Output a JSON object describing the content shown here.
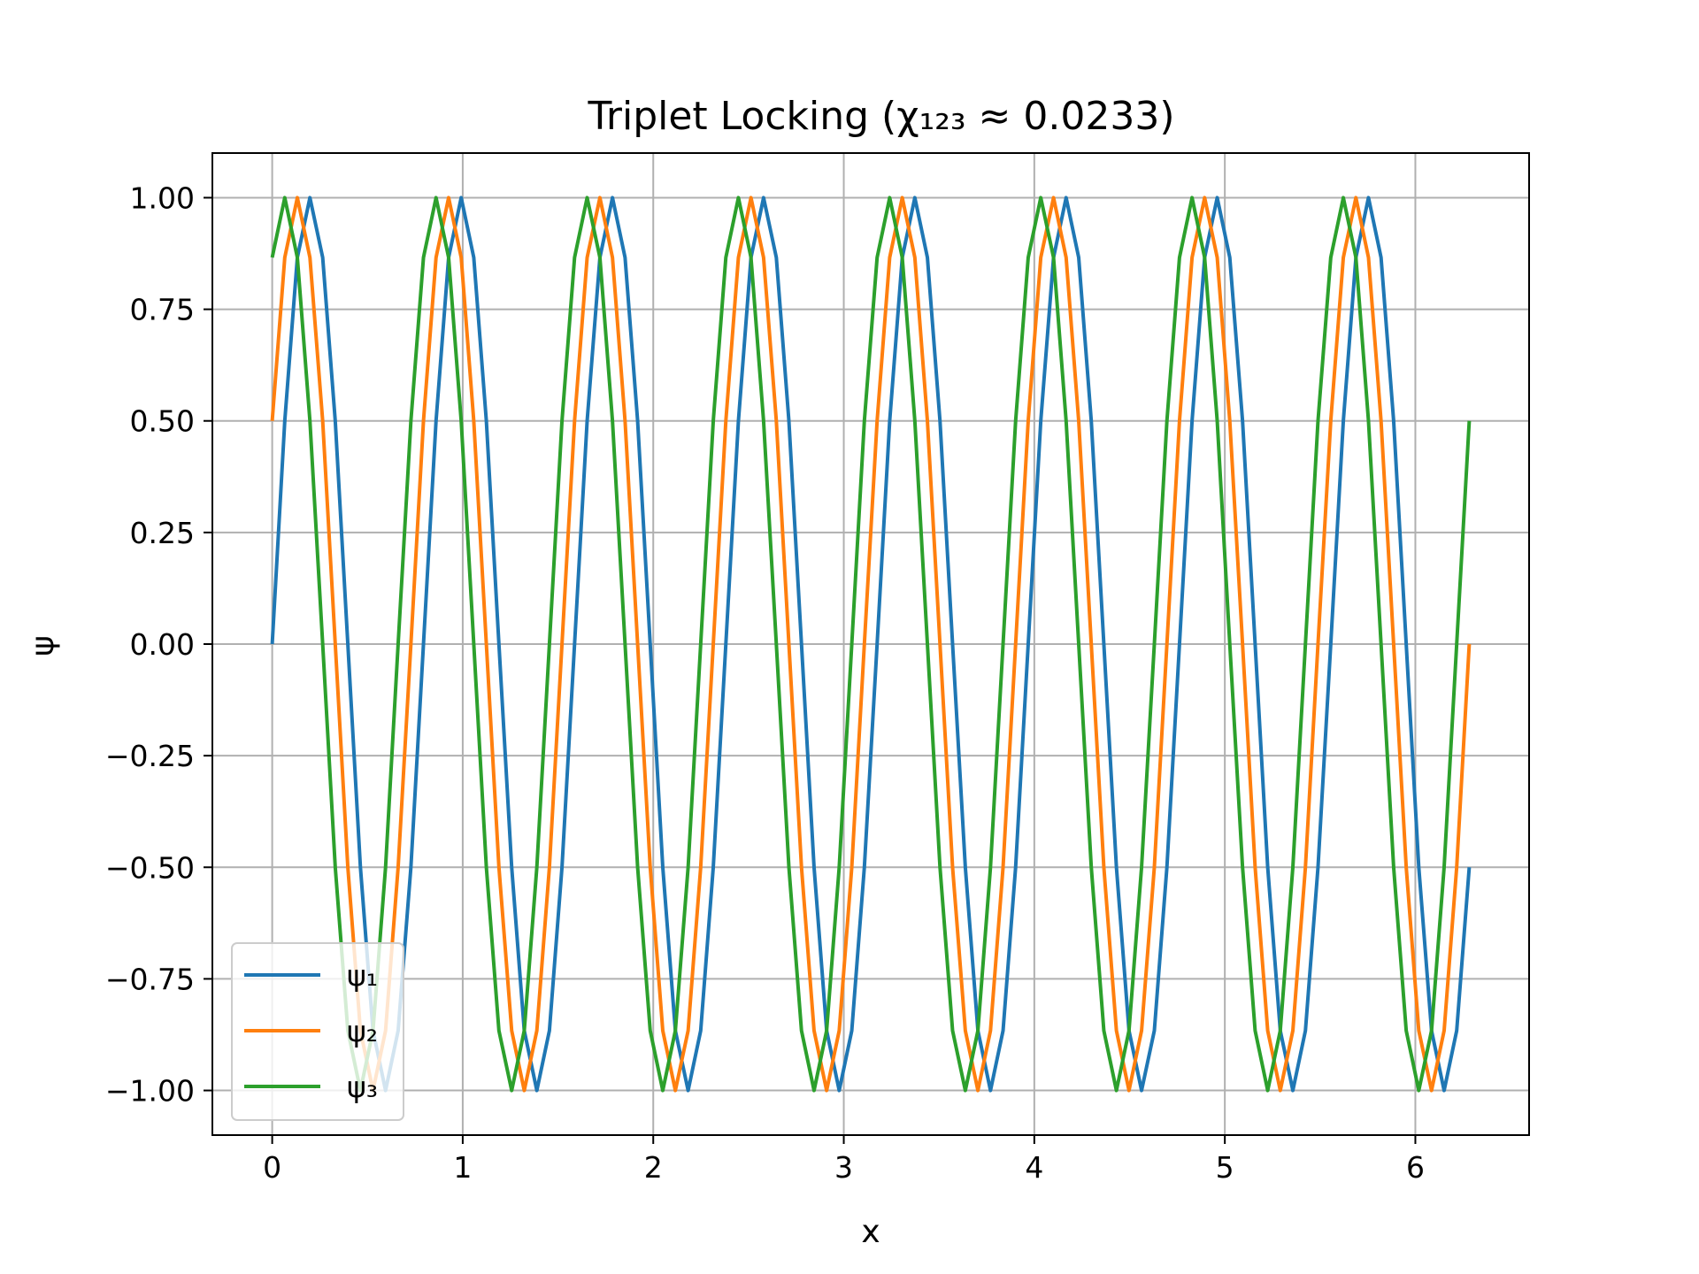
{
  "chart_data": {
    "type": "line",
    "title": "Triplet Locking (χ₁₂₃ ≈ 0.0233)",
    "xlabel": "x",
    "ylabel": "ψ",
    "xlim": [
      -0.314,
      6.597
    ],
    "ylim": [
      -1.1,
      1.1
    ],
    "grid": true,
    "legend_position": "lower-left",
    "x_ticks": [
      0,
      1,
      2,
      3,
      4,
      5,
      6
    ],
    "x_tick_labels": [
      "0",
      "1",
      "2",
      "3",
      "4",
      "5",
      "6"
    ],
    "y_ticks": [
      1.0,
      0.75,
      0.5,
      0.25,
      0.0,
      -0.25,
      -0.5,
      -0.75,
      -1.0
    ],
    "y_tick_labels": [
      "1.00",
      "0.75",
      "0.50",
      "0.25",
      "0.00",
      "−0.25",
      "−0.50",
      "−0.75",
      "−1.00"
    ],
    "x": [
      0.0,
      0.066,
      0.132,
      0.198,
      0.265,
      0.331,
      0.397,
      0.463,
      0.529,
      0.595,
      0.661,
      0.728,
      0.794,
      0.86,
      0.926,
      0.992,
      1.058,
      1.124,
      1.19,
      1.257,
      1.323,
      1.389,
      1.455,
      1.521,
      1.587,
      1.653,
      1.72,
      1.786,
      1.852,
      1.918,
      1.984,
      2.05,
      2.116,
      2.183,
      2.249,
      2.315,
      2.381,
      2.447,
      2.513,
      2.579,
      2.646,
      2.712,
      2.778,
      2.844,
      2.91,
      2.976,
      3.042,
      3.108,
      3.175,
      3.241,
      3.307,
      3.373,
      3.439,
      3.505,
      3.571,
      3.638,
      3.704,
      3.77,
      3.836,
      3.902,
      3.968,
      4.034,
      4.101,
      4.167,
      4.233,
      4.299,
      4.365,
      4.431,
      4.497,
      4.563,
      4.63,
      4.696,
      4.762,
      4.828,
      4.894,
      4.96,
      5.026,
      5.093,
      5.159,
      5.225,
      5.291,
      5.357,
      5.423,
      5.489,
      5.556,
      5.622,
      5.688,
      5.754,
      5.82,
      5.886,
      5.952,
      6.018,
      6.085,
      6.151,
      6.217,
      6.283
    ],
    "series": [
      {
        "name": "ψ₁",
        "color": "#1f77b4",
        "values": [
          0.0,
          0.5,
          0.866,
          1.0,
          0.866,
          0.5,
          0.0,
          -0.5,
          -0.866,
          -1.0,
          -0.866,
          -0.5,
          -0.0,
          0.5,
          0.866,
          1.0,
          0.866,
          0.5,
          0.0,
          -0.5,
          -0.866,
          -1.0,
          -0.866,
          -0.5,
          -0.0,
          0.5,
          0.866,
          1.0,
          0.866,
          0.5,
          0.0,
          -0.5,
          -0.866,
          -1.0,
          -0.866,
          -0.5,
          -0.0,
          0.5,
          0.866,
          1.0,
          0.866,
          0.5,
          0.0,
          -0.5,
          -0.866,
          -1.0,
          -0.866,
          -0.5,
          -0.0,
          0.5,
          0.866,
          1.0,
          0.866,
          0.5,
          0.0,
          -0.5,
          -0.866,
          -1.0,
          -0.866,
          -0.5,
          -0.0,
          0.5,
          0.866,
          1.0,
          0.866,
          0.5,
          0.0,
          -0.5,
          -0.866,
          -1.0,
          -0.866,
          -0.5,
          -0.0,
          0.5,
          0.866,
          1.0,
          0.866,
          0.5,
          0.0,
          -0.5,
          -0.866,
          -1.0,
          -0.866,
          -0.5,
          -0.0,
          0.5,
          0.866,
          1.0,
          0.866,
          0.5,
          0.0,
          -0.5,
          -0.866,
          -1.0,
          -0.866,
          -0.5
        ]
      },
      {
        "name": "ψ₂",
        "color": "#ff7f0e",
        "values": [
          0.5,
          0.866,
          1.0,
          0.866,
          0.5,
          0.0,
          -0.5,
          -0.866,
          -1.0,
          -0.866,
          -0.5,
          -0.0,
          0.5,
          0.866,
          1.0,
          0.866,
          0.5,
          0.0,
          -0.5,
          -0.866,
          -1.0,
          -0.866,
          -0.5,
          -0.0,
          0.5,
          0.866,
          1.0,
          0.866,
          0.5,
          0.0,
          -0.5,
          -0.866,
          -1.0,
          -0.866,
          -0.5,
          -0.0,
          0.5,
          0.866,
          1.0,
          0.866,
          0.5,
          0.0,
          -0.5,
          -0.866,
          -1.0,
          -0.866,
          -0.5,
          -0.0,
          0.5,
          0.866,
          1.0,
          0.866,
          0.5,
          0.0,
          -0.5,
          -0.866,
          -1.0,
          -0.866,
          -0.5,
          -0.0,
          0.5,
          0.866,
          1.0,
          0.866,
          0.5,
          0.0,
          -0.5,
          -0.866,
          -1.0,
          -0.866,
          -0.5,
          -0.0,
          0.5,
          0.866,
          1.0,
          0.866,
          0.5,
          0.0,
          -0.5,
          -0.866,
          -1.0,
          -0.866,
          -0.5,
          -0.0,
          0.5,
          0.866,
          1.0,
          0.866,
          0.5,
          0.0,
          -0.5,
          -0.866,
          -1.0,
          -0.866,
          -0.5,
          0.0
        ]
      },
      {
        "name": "ψ₃",
        "color": "#2ca02c",
        "values": [
          0.866,
          1.0,
          0.866,
          0.5,
          0.0,
          -0.5,
          -0.866,
          -1.0,
          -0.866,
          -0.5,
          -0.0,
          0.5,
          0.866,
          1.0,
          0.866,
          0.5,
          0.0,
          -0.5,
          -0.866,
          -1.0,
          -0.866,
          -0.5,
          -0.0,
          0.5,
          0.866,
          1.0,
          0.866,
          0.5,
          0.0,
          -0.5,
          -0.866,
          -1.0,
          -0.866,
          -0.5,
          -0.0,
          0.5,
          0.866,
          1.0,
          0.866,
          0.5,
          0.0,
          -0.5,
          -0.866,
          -1.0,
          -0.866,
          -0.5,
          -0.0,
          0.5,
          0.866,
          1.0,
          0.866,
          0.5,
          0.0,
          -0.5,
          -0.866,
          -1.0,
          -0.866,
          -0.5,
          -0.0,
          0.5,
          0.866,
          1.0,
          0.866,
          0.5,
          0.0,
          -0.5,
          -0.866,
          -1.0,
          -0.866,
          -0.5,
          -0.0,
          0.5,
          0.866,
          1.0,
          0.866,
          0.5,
          0.0,
          -0.5,
          -0.866,
          -1.0,
          -0.866,
          -0.5,
          -0.0,
          0.5,
          0.866,
          1.0,
          0.866,
          0.5,
          0.0,
          -0.5,
          -0.866,
          -1.0,
          -0.866,
          -0.5,
          0.0,
          0.5
        ]
      }
    ]
  }
}
